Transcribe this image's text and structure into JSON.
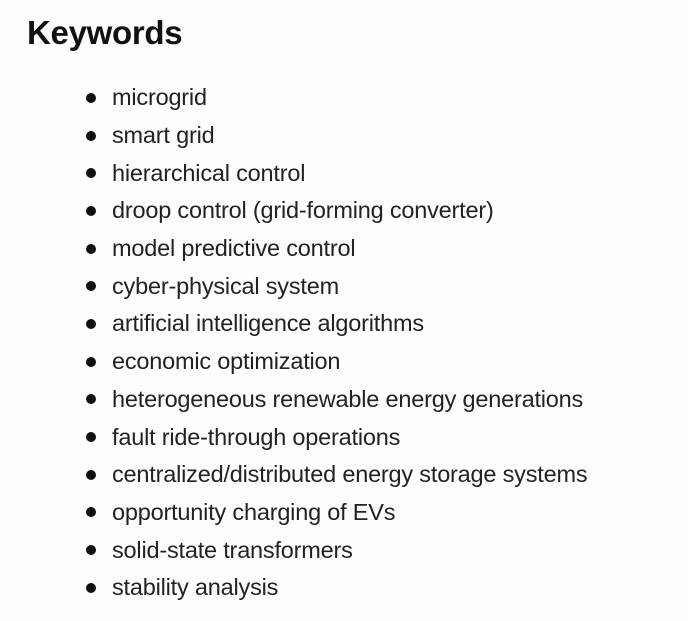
{
  "heading": "Keywords",
  "keywords": [
    "microgrid",
    "smart grid",
    "hierarchical control",
    "droop control (grid-forming converter)",
    "model predictive control",
    "cyber-physical system",
    "artificial intelligence algorithms",
    "economic optimization",
    "heterogeneous renewable energy generations",
    "fault ride-through operations",
    "centralized/distributed energy storage systems",
    "opportunity charging of EVs",
    "solid-state transformers",
    "stability analysis"
  ]
}
